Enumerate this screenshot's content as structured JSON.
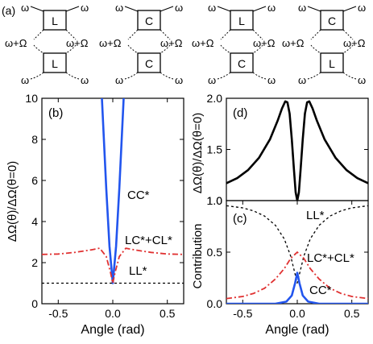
{
  "panel_a": {
    "label": "(a)",
    "omega": "ω",
    "omega_plus_Omega": "ω+Ω",
    "diagrams": [
      {
        "top": "L",
        "bottom": "L"
      },
      {
        "top": "C",
        "bottom": "C"
      },
      {
        "top": "L",
        "bottom": "C"
      },
      {
        "top": "C",
        "bottom": "L"
      }
    ]
  },
  "chart_data": [
    {
      "panel": "(b)",
      "type": "line",
      "xlabel": "Angle (rad)",
      "ylabel": "ΔΩ(θ)/ΔΩ(θ=0)",
      "xlim": [
        -0.65,
        0.65
      ],
      "ylim": [
        0,
        10
      ],
      "xticks": [
        "-0.5",
        "0.0",
        "0.5"
      ],
      "yticks": [
        "0",
        "2",
        "4",
        "6",
        "8",
        "10"
      ],
      "series": [
        {
          "name": "CC*",
          "color": "#2255ee",
          "style": "solid",
          "x": [
            -0.14,
            -0.1,
            -0.06,
            -0.03,
            0.0,
            0.03,
            0.06,
            0.1,
            0.14
          ],
          "y": [
            14.0,
            10.0,
            5.6,
            2.8,
            1.0,
            2.8,
            5.6,
            10.0,
            14.0
          ]
        },
        {
          "name": "LC*+CL*",
          "color": "#e03030",
          "style": "dashdot",
          "x": [
            -0.65,
            -0.5,
            -0.35,
            -0.2,
            -0.12,
            -0.06,
            -0.02,
            0.0,
            0.02,
            0.06,
            0.12,
            0.2,
            0.35,
            0.5,
            0.65
          ],
          "y": [
            2.4,
            2.42,
            2.5,
            2.62,
            2.7,
            2.3,
            1.5,
            1.0,
            1.5,
            2.3,
            2.7,
            2.62,
            2.5,
            2.42,
            2.4
          ]
        },
        {
          "name": "LL*",
          "color": "#000000",
          "style": "dotted",
          "x": [
            -0.65,
            0.65
          ],
          "y": [
            1.0,
            1.0
          ]
        }
      ]
    },
    {
      "panel": "(d)",
      "type": "line",
      "ylabel": "ΔΩ(θ)/ΔΩ(θ=0)",
      "xlim": [
        -0.65,
        0.65
      ],
      "ylim": [
        1.0,
        2.0
      ],
      "yticks": [
        "1.0",
        "1.5",
        "2.0"
      ],
      "series": [
        {
          "color": "#000000",
          "style": "solid",
          "x": [
            -0.65,
            -0.55,
            -0.45,
            -0.35,
            -0.25,
            -0.18,
            -0.14,
            -0.11,
            -0.09,
            -0.07,
            -0.05,
            -0.03,
            -0.015,
            0.0,
            0.015,
            0.03,
            0.05,
            0.07,
            0.09,
            0.11,
            0.14,
            0.18,
            0.25,
            0.35,
            0.45,
            0.55,
            0.65
          ],
          "y": [
            1.17,
            1.22,
            1.3,
            1.42,
            1.6,
            1.78,
            1.9,
            1.97,
            1.96,
            1.85,
            1.6,
            1.3,
            1.08,
            1.0,
            1.08,
            1.3,
            1.6,
            1.85,
            1.96,
            1.97,
            1.9,
            1.78,
            1.6,
            1.42,
            1.3,
            1.22,
            1.17
          ]
        }
      ]
    },
    {
      "panel": "(c)",
      "type": "line",
      "xlabel": "Angle (rad)",
      "ylabel": "Contribution",
      "xlim": [
        -0.65,
        0.65
      ],
      "ylim": [
        0,
        1.0
      ],
      "xticks": [
        "-0.5",
        "0.0",
        "0.5"
      ],
      "yticks": [
        "0.0",
        "0.5",
        "1.0"
      ],
      "series": [
        {
          "name": "LL*",
          "color": "#000000",
          "style": "dotted",
          "x": [
            -0.65,
            -0.5,
            -0.4,
            -0.3,
            -0.2,
            -0.12,
            -0.06,
            0.0,
            0.06,
            0.12,
            0.2,
            0.3,
            0.4,
            0.5,
            0.65
          ],
          "y": [
            0.95,
            0.93,
            0.9,
            0.85,
            0.76,
            0.63,
            0.46,
            0.2,
            0.46,
            0.63,
            0.76,
            0.85,
            0.9,
            0.93,
            0.95
          ]
        },
        {
          "name": "LC*+CL*",
          "color": "#e03030",
          "style": "dashdot",
          "x": [
            -0.65,
            -0.5,
            -0.4,
            -0.3,
            -0.2,
            -0.12,
            -0.06,
            0.0,
            0.06,
            0.12,
            0.2,
            0.3,
            0.4,
            0.5,
            0.65
          ],
          "y": [
            0.05,
            0.07,
            0.1,
            0.15,
            0.24,
            0.34,
            0.44,
            0.5,
            0.44,
            0.34,
            0.24,
            0.15,
            0.1,
            0.07,
            0.05
          ]
        },
        {
          "name": "CC*",
          "color": "#2255ee",
          "style": "solid",
          "x": [
            -0.65,
            -0.4,
            -0.2,
            -0.1,
            -0.05,
            -0.02,
            0.0,
            0.02,
            0.05,
            0.1,
            0.2,
            0.4,
            0.65
          ],
          "y": [
            0.0,
            0.0,
            0.0,
            0.02,
            0.08,
            0.2,
            0.3,
            0.2,
            0.08,
            0.02,
            0.0,
            0.0,
            0.0
          ]
        }
      ]
    }
  ],
  "annotations": {
    "b_cc": "CC*",
    "b_lccl": "LC*+CL*",
    "b_ll": "LL*",
    "c_ll": "LL*",
    "c_lccl": "LC*+CL*",
    "c_cc": "CC*",
    "d_label": "(d)",
    "c_label": "(c)",
    "b_label": "(b)"
  }
}
